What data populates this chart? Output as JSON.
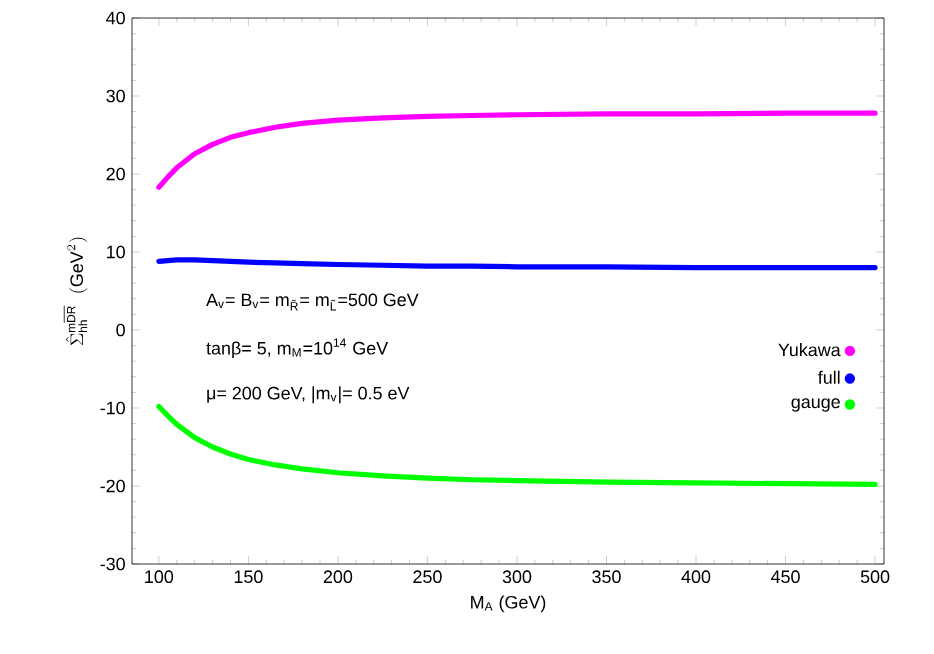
{
  "chart_data": {
    "type": "line",
    "xlabel": "M$_{A}$ (GeV)",
    "ylabel": "\\hat{\\Sigma}^{\\mathrm{m}\\overline{\\mathrm{DR}}}_{\\mathrm{hh}}\\;\\;(\\mathrm{GeV}^2)",
    "x": [
      100,
      105,
      110,
      120,
      130,
      140,
      150,
      165,
      180,
      200,
      225,
      250,
      275,
      300,
      350,
      400,
      450,
      500
    ],
    "series": [
      {
        "name": "Yukawa",
        "color": "#ff00ff",
        "values": [
          18.3,
          19.6,
          20.8,
          22.6,
          23.8,
          24.7,
          25.3,
          26.0,
          26.5,
          26.9,
          27.2,
          27.4,
          27.5,
          27.6,
          27.7,
          27.7,
          27.8,
          27.8
        ]
      },
      {
        "name": "full",
        "color": "#0000ff",
        "values": [
          8.8,
          8.9,
          9.0,
          9.0,
          8.9,
          8.8,
          8.7,
          8.6,
          8.5,
          8.4,
          8.3,
          8.2,
          8.2,
          8.1,
          8.1,
          8.0,
          8.0,
          8.0
        ]
      },
      {
        "name": "gauge",
        "color": "#00ff00",
        "values": [
          -9.8,
          -11.0,
          -12.1,
          -13.8,
          -15.0,
          -15.9,
          -16.6,
          -17.3,
          -17.8,
          -18.3,
          -18.7,
          -19.0,
          -19.2,
          -19.3,
          -19.5,
          -19.6,
          -19.7,
          -19.8
        ]
      }
    ],
    "xlim": [
      85,
      505
    ],
    "ylim": [
      -30,
      40
    ],
    "xticks": [
      100,
      150,
      200,
      250,
      300,
      350,
      400,
      450,
      500
    ],
    "yticks": [
      -30,
      -20,
      -10,
      0,
      10,
      20,
      30,
      40
    ],
    "annotations": [
      "A$_{v}$= B$_{v}$= m$_{R̃}$= m$_{L̃}$=500 GeV",
      "tanβ= 5,  m$_{M}$=10$^{14}$ GeV",
      "μ= 200 GeV, |m$_{v}$|= 0.5 eV"
    ],
    "legend": "right",
    "grid": false,
    "marker": "none",
    "line_style": "solid"
  }
}
